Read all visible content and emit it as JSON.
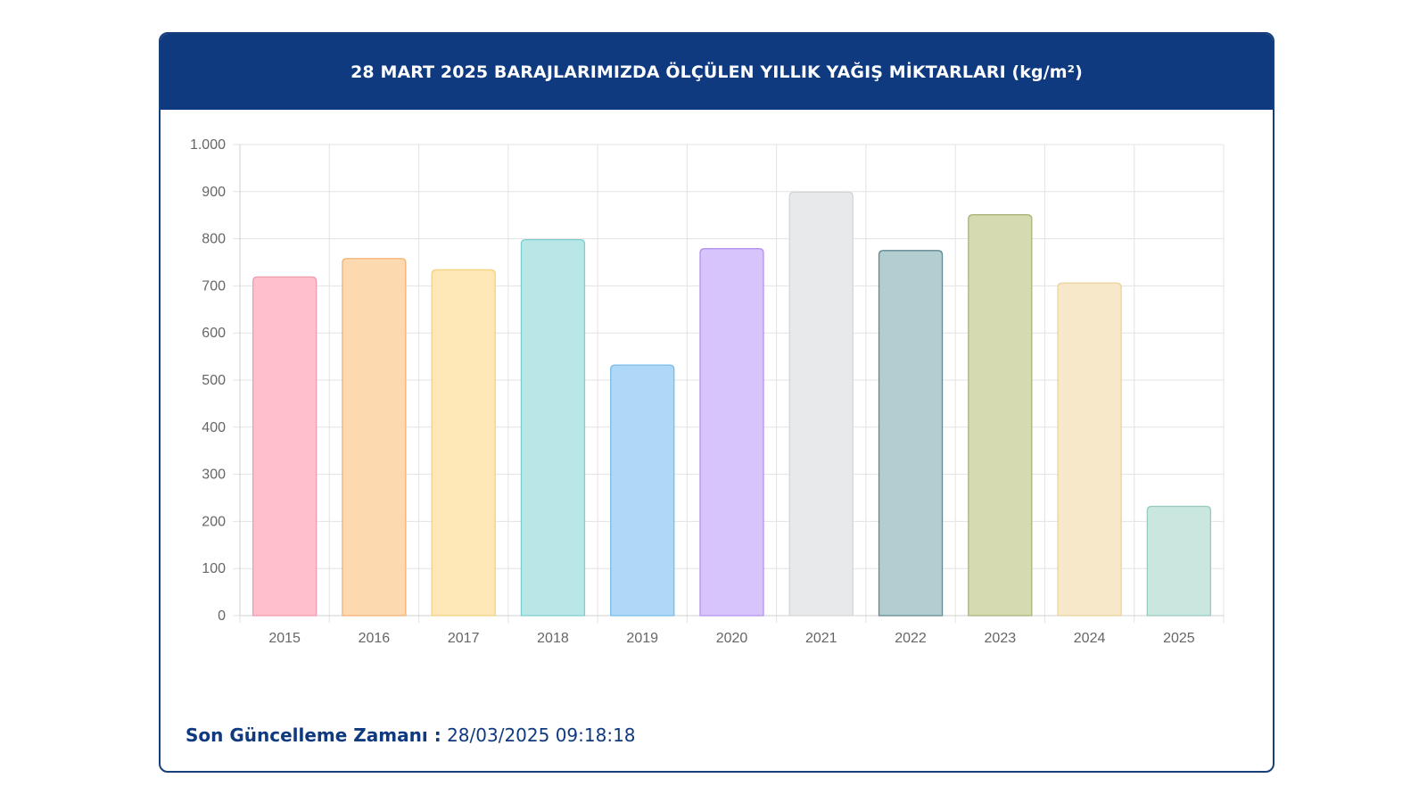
{
  "header": {
    "title": "28 MART 2025 BARAJLARIMIZDA ÖLÇÜLEN YILLIK YAĞIŞ MİKTARLARI (kg/m²)"
  },
  "footer": {
    "label": "Son Güncelleme Zamanı :",
    "value": "28/03/2025 09:18:18"
  },
  "chart_data": {
    "type": "bar",
    "title": "28 MART 2025 BARAJLARIMIZDA ÖLÇÜLEN YILLIK YAĞIŞ MİKTARLARI (kg/m²)",
    "xlabel": "",
    "ylabel": "",
    "ylim": [
      0,
      1000
    ],
    "yticks": [
      0,
      100,
      200,
      300,
      400,
      500,
      600,
      700,
      800,
      900,
      1000
    ],
    "ytick_labels": [
      "0",
      "100",
      "200",
      "300",
      "400",
      "500",
      "600",
      "700",
      "800",
      "900",
      "1.000"
    ],
    "grid": true,
    "legend": "none",
    "categories": [
      "2015",
      "2016",
      "2017",
      "2018",
      "2019",
      "2020",
      "2021",
      "2022",
      "2023",
      "2024",
      "2025"
    ],
    "values": [
      719,
      758,
      734,
      798,
      532,
      779,
      899,
      775,
      851,
      706,
      232
    ],
    "colors": [
      {
        "fill": "#ffc0cc",
        "stroke": "#f29aae"
      },
      {
        "fill": "#fdd9b0",
        "stroke": "#f2b277"
      },
      {
        "fill": "#fee8b8",
        "stroke": "#f5d07f"
      },
      {
        "fill": "#b9e6e6",
        "stroke": "#7ccece"
      },
      {
        "fill": "#aed8f6",
        "stroke": "#7bbce9"
      },
      {
        "fill": "#d7c4fd",
        "stroke": "#b292ef"
      },
      {
        "fill": "#e8e9ea",
        "stroke": "#d3d5d7"
      },
      {
        "fill": "#b3ced1",
        "stroke": "#5f8890"
      },
      {
        "fill": "#d6dab1",
        "stroke": "#aab377"
      },
      {
        "fill": "#f6e8c9",
        "stroke": "#ead29a"
      },
      {
        "fill": "#c9e6df",
        "stroke": "#96cbbf"
      }
    ]
  }
}
